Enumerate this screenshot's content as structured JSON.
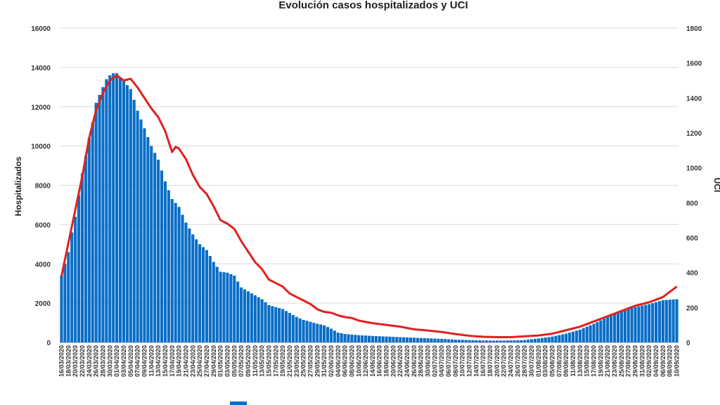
{
  "chart_data": {
    "type": "bar",
    "title": "Evolución casos hospitalizados y UCI",
    "ylabel": "Hospitalizados",
    "y2label": "UCI",
    "ylim": [
      0,
      16000
    ],
    "y2lim": [
      0,
      1800
    ],
    "yticks": [
      "0",
      "2000",
      "4000",
      "6000",
      "8000",
      "10000",
      "12000",
      "14000",
      "16000"
    ],
    "y2ticks": [
      "0",
      "200",
      "400",
      "600",
      "800",
      "1000",
      "1200",
      "1400",
      "1600",
      "1800"
    ],
    "grid": true,
    "legend": "bottom",
    "start_date": "16/03/2020",
    "end_date": "10/09/2020",
    "x_tick_labels": [
      "16/03/2020",
      "18/03/2020",
      "20/03/2020",
      "22/03/2020",
      "24/03/2020",
      "26/03/2020",
      "28/03/2020",
      "30/03/2020",
      "01/04/2020",
      "03/04/2020",
      "05/04/2020",
      "07/04/2020",
      "09/04/2020",
      "11/04/2020",
      "13/04/2020",
      "15/04/2020",
      "17/04/2020",
      "19/04/2020",
      "21/04/2020",
      "23/04/2020",
      "25/04/2020",
      "27/04/2020",
      "29/04/2020",
      "01/05/2020",
      "03/05/2020",
      "05/05/2020",
      "07/05/2020",
      "09/05/2020",
      "11/05/2020",
      "13/05/2020",
      "15/05/2020",
      "17/05/2020",
      "19/05/2020",
      "21/05/2020",
      "23/05/2020",
      "25/05/2020",
      "27/05/2020",
      "29/05/2020",
      "31/05/2020",
      "02/06/2020",
      "04/06/2020",
      "06/06/2020",
      "08/06/2020",
      "10/06/2020",
      "12/06/2020",
      "14/06/2020",
      "16/06/2020",
      "18/06/2020",
      "20/06/2020",
      "22/06/2020",
      "24/06/2020",
      "26/06/2020",
      "28/06/2020",
      "30/06/2020",
      "02/07/2020",
      "04/07/2020",
      "06/07/2020",
      "08/07/2020",
      "10/07/2020",
      "12/07/2020",
      "14/07/2020",
      "16/07/2020",
      "18/07/2020",
      "20/07/2020",
      "22/07/2020",
      "24/07/2020",
      "26/07/2020",
      "28/07/2020",
      "30/07/2020",
      "01/08/2020",
      "03/08/2020",
      "05/08/2020",
      "07/08/2020",
      "09/08/2020",
      "11/08/2020",
      "13/08/2020",
      "15/08/2020",
      "17/08/2020",
      "19/08/2020",
      "21/08/2020",
      "23/08/2020",
      "25/08/2020",
      "27/08/2020",
      "29/08/2020",
      "31/08/2020",
      "02/09/2020",
      "04/09/2020",
      "06/09/2020",
      "08/09/2020",
      "10/09/2020"
    ],
    "series": [
      {
        "name": "",
        "type": "bar",
        "axis": "left",
        "color": "#0A6EC6",
        "anchors": [
          [
            "16/03/2020",
            3400
          ],
          [
            "17/03/2020",
            4000
          ],
          [
            "18/03/2020",
            4600
          ],
          [
            "19/03/2020",
            5600
          ],
          [
            "20/03/2020",
            6400
          ],
          [
            "21/03/2020",
            7500
          ],
          [
            "22/03/2020",
            8600
          ],
          [
            "23/03/2020",
            9500
          ],
          [
            "24/03/2020",
            10400
          ],
          [
            "25/03/2020",
            11200
          ],
          [
            "26/03/2020",
            12200
          ],
          [
            "27/03/2020",
            12600
          ],
          [
            "28/03/2020",
            13000
          ],
          [
            "29/03/2020",
            13400
          ],
          [
            "30/03/2020",
            13600
          ],
          [
            "31/03/2020",
            13700
          ],
          [
            "01/04/2020",
            13700
          ],
          [
            "03/04/2020",
            13300
          ],
          [
            "05/04/2020",
            12900
          ],
          [
            "07/04/2020",
            11800
          ],
          [
            "09/04/2020",
            10900
          ],
          [
            "11/04/2020",
            10000
          ],
          [
            "13/04/2020",
            9300
          ],
          [
            "15/04/2020",
            8200
          ],
          [
            "17/04/2020",
            7300
          ],
          [
            "19/04/2020",
            6900
          ],
          [
            "21/04/2020",
            6100
          ],
          [
            "23/04/2020",
            5500
          ],
          [
            "25/04/2020",
            5000
          ],
          [
            "27/04/2020",
            4700
          ],
          [
            "29/04/2020",
            4100
          ],
          [
            "01/05/2020",
            3600
          ],
          [
            "03/05/2020",
            3550
          ],
          [
            "05/05/2020",
            3400
          ],
          [
            "07/05/2020",
            2800
          ],
          [
            "09/05/2020",
            2600
          ],
          [
            "11/05/2020",
            2400
          ],
          [
            "13/05/2020",
            2200
          ],
          [
            "15/05/2020",
            1900
          ],
          [
            "17/05/2020",
            1800
          ],
          [
            "19/05/2020",
            1700
          ],
          [
            "21/05/2020",
            1500
          ],
          [
            "23/05/2020",
            1300
          ],
          [
            "25/05/2020",
            1150
          ],
          [
            "27/05/2020",
            1050
          ],
          [
            "29/05/2020",
            950
          ],
          [
            "31/05/2020",
            870
          ],
          [
            "02/06/2020",
            700
          ],
          [
            "04/06/2020",
            500
          ],
          [
            "06/06/2020",
            430
          ],
          [
            "08/06/2020",
            400
          ],
          [
            "10/06/2020",
            370
          ],
          [
            "14/06/2020",
            330
          ],
          [
            "18/06/2020",
            300
          ],
          [
            "22/06/2020",
            270
          ],
          [
            "26/06/2020",
            240
          ],
          [
            "30/06/2020",
            210
          ],
          [
            "04/07/2020",
            180
          ],
          [
            "08/07/2020",
            140
          ],
          [
            "12/07/2020",
            120
          ],
          [
            "16/07/2020",
            100
          ],
          [
            "20/07/2020",
            95
          ],
          [
            "24/07/2020",
            100
          ],
          [
            "28/07/2020",
            120
          ],
          [
            "01/08/2020",
            200
          ],
          [
            "05/08/2020",
            300
          ],
          [
            "09/08/2020",
            450
          ],
          [
            "13/08/2020",
            650
          ],
          [
            "17/08/2020",
            950
          ],
          [
            "21/08/2020",
            1300
          ],
          [
            "25/08/2020",
            1600
          ],
          [
            "29/08/2020",
            1800
          ],
          [
            "02/09/2020",
            1950
          ],
          [
            "06/09/2020",
            2150
          ],
          [
            "10/09/2020",
            2200
          ]
        ]
      },
      {
        "name": "",
        "type": "line",
        "axis": "right",
        "color": "#E02020",
        "anchors": [
          [
            "16/03/2020",
            380
          ],
          [
            "18/03/2020",
            570
          ],
          [
            "20/03/2020",
            760
          ],
          [
            "22/03/2020",
            950
          ],
          [
            "24/03/2020",
            1170
          ],
          [
            "26/03/2020",
            1330
          ],
          [
            "28/03/2020",
            1430
          ],
          [
            "30/03/2020",
            1500
          ],
          [
            "01/04/2020",
            1530
          ],
          [
            "03/04/2020",
            1500
          ],
          [
            "05/04/2020",
            1510
          ],
          [
            "07/04/2020",
            1460
          ],
          [
            "09/04/2020",
            1400
          ],
          [
            "11/04/2020",
            1340
          ],
          [
            "13/04/2020",
            1290
          ],
          [
            "15/04/2020",
            1210
          ],
          [
            "17/04/2020",
            1090
          ],
          [
            "18/04/2020",
            1120
          ],
          [
            "19/04/2020",
            1110
          ],
          [
            "21/04/2020",
            1050
          ],
          [
            "23/04/2020",
            960
          ],
          [
            "25/04/2020",
            890
          ],
          [
            "27/04/2020",
            850
          ],
          [
            "29/04/2020",
            780
          ],
          [
            "01/05/2020",
            700
          ],
          [
            "03/05/2020",
            680
          ],
          [
            "05/05/2020",
            650
          ],
          [
            "07/05/2020",
            580
          ],
          [
            "09/05/2020",
            520
          ],
          [
            "11/05/2020",
            460
          ],
          [
            "13/05/2020",
            420
          ],
          [
            "15/05/2020",
            360
          ],
          [
            "17/05/2020",
            340
          ],
          [
            "19/05/2020",
            320
          ],
          [
            "21/05/2020",
            280
          ],
          [
            "23/05/2020",
            260
          ],
          [
            "25/05/2020",
            240
          ],
          [
            "27/05/2020",
            220
          ],
          [
            "29/05/2020",
            190
          ],
          [
            "31/05/2020",
            175
          ],
          [
            "02/06/2020",
            170
          ],
          [
            "04/06/2020",
            155
          ],
          [
            "06/06/2020",
            145
          ],
          [
            "08/06/2020",
            140
          ],
          [
            "10/06/2020",
            125
          ],
          [
            "14/06/2020",
            110
          ],
          [
            "18/06/2020",
            100
          ],
          [
            "22/06/2020",
            90
          ],
          [
            "26/06/2020",
            75
          ],
          [
            "30/06/2020",
            68
          ],
          [
            "04/07/2020",
            60
          ],
          [
            "08/07/2020",
            48
          ],
          [
            "12/07/2020",
            38
          ],
          [
            "16/07/2020",
            32
          ],
          [
            "20/07/2020",
            30
          ],
          [
            "24/07/2020",
            30
          ],
          [
            "28/07/2020",
            35
          ],
          [
            "01/08/2020",
            40
          ],
          [
            "05/08/2020",
            50
          ],
          [
            "09/08/2020",
            70
          ],
          [
            "13/08/2020",
            90
          ],
          [
            "17/08/2020",
            120
          ],
          [
            "21/08/2020",
            150
          ],
          [
            "25/08/2020",
            180
          ],
          [
            "29/08/2020",
            210
          ],
          [
            "02/09/2020",
            230
          ],
          [
            "06/09/2020",
            260
          ],
          [
            "08/09/2020",
            290
          ],
          [
            "10/09/2020",
            320
          ]
        ]
      }
    ]
  }
}
